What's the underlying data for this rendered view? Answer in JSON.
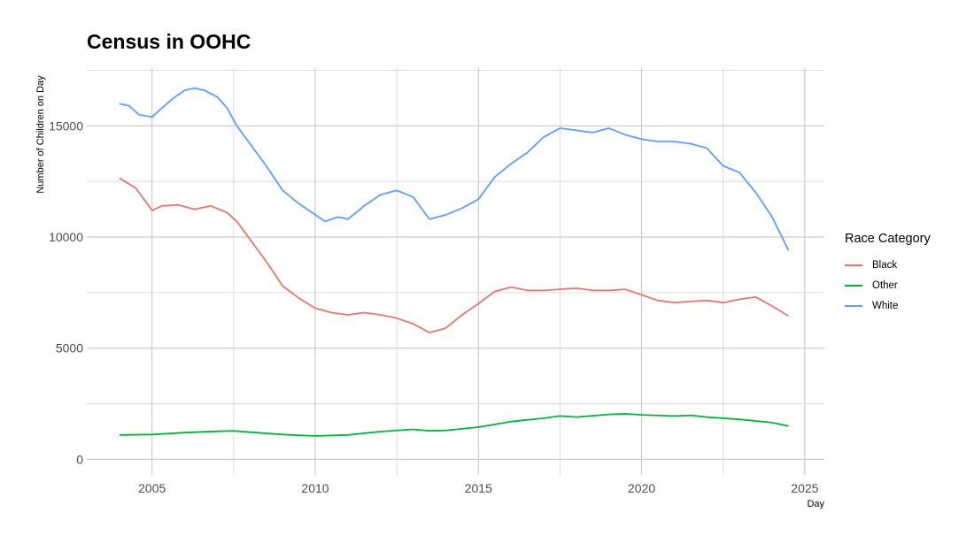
{
  "chart_data": {
    "type": "line",
    "title": "Census in OOHC",
    "xlabel": "Day",
    "ylabel": "Number of Children on Day",
    "xlim": [
      2003.0,
      2025.6
    ],
    "ylim": [
      -700,
      17600
    ],
    "x_ticks": [
      2005,
      2010,
      2015,
      2020,
      2025
    ],
    "y_ticks": [
      0,
      5000,
      10000,
      15000
    ],
    "grid": true,
    "legend": {
      "title": "Race Category",
      "placement": "right"
    },
    "series": [
      {
        "name": "Black",
        "color": "#E8766E",
        "x": [
          2004.0,
          2004.5,
          2005.0,
          2005.3,
          2005.8,
          2006.3,
          2006.8,
          2007.3,
          2007.6,
          2008.0,
          2008.5,
          2009.0,
          2009.5,
          2010.0,
          2010.5,
          2011.0,
          2011.5,
          2012.0,
          2012.5,
          2013.0,
          2013.5,
          2014.0,
          2014.5,
          2015.0,
          2015.5,
          2016.0,
          2016.5,
          2017.0,
          2017.5,
          2018.0,
          2018.5,
          2019.0,
          2019.5,
          2020.0,
          2020.5,
          2021.0,
          2021.5,
          2022.0,
          2022.5,
          2023.0,
          2023.5,
          2024.0,
          2024.5
        ],
        "y": [
          12650,
          12200,
          11200,
          11400,
          11450,
          11250,
          11400,
          11100,
          10700,
          9900,
          8900,
          7800,
          7250,
          6800,
          6600,
          6500,
          6600,
          6500,
          6350,
          6100,
          5700,
          5900,
          6500,
          7000,
          7550,
          7750,
          7600,
          7600,
          7650,
          7700,
          7600,
          7600,
          7650,
          7400,
          7150,
          7050,
          7100,
          7150,
          7050,
          7200,
          7300,
          6900,
          6450
        ]
      },
      {
        "name": "Other",
        "color": "#00B33C",
        "x": [
          2004.0,
          2005.0,
          2006.0,
          2007.0,
          2007.5,
          2008.0,
          2009.0,
          2010.0,
          2011.0,
          2012.0,
          2013.0,
          2013.5,
          2014.0,
          2015.0,
          2016.0,
          2017.0,
          2017.5,
          2018.0,
          2019.0,
          2019.5,
          2020.0,
          2021.0,
          2021.5,
          2022.0,
          2023.0,
          2024.0,
          2024.5
        ],
        "y": [
          1100,
          1120,
          1200,
          1260,
          1280,
          1220,
          1120,
          1050,
          1100,
          1250,
          1350,
          1280,
          1300,
          1450,
          1700,
          1850,
          1950,
          1900,
          2020,
          2050,
          2000,
          1950,
          1980,
          1900,
          1800,
          1650,
          1500
        ]
      },
      {
        "name": "White",
        "color": "#619CFF",
        "x": [
          2004.0,
          2004.3,
          2004.6,
          2005.0,
          2005.3,
          2005.7,
          2006.0,
          2006.3,
          2006.6,
          2007.0,
          2007.3,
          2007.6,
          2008.0,
          2008.5,
          2009.0,
          2009.5,
          2010.0,
          2010.3,
          2010.7,
          2011.0,
          2011.5,
          2012.0,
          2012.5,
          2013.0,
          2013.5,
          2014.0,
          2014.5,
          2015.0,
          2015.5,
          2016.0,
          2016.5,
          2017.0,
          2017.5,
          2018.0,
          2018.5,
          2019.0,
          2019.5,
          2020.0,
          2020.5,
          2021.0,
          2021.5,
          2022.0,
          2022.5,
          2023.0,
          2023.5,
          2024.0,
          2024.5
        ],
        "y": [
          16000,
          15900,
          15500,
          15400,
          15800,
          16300,
          16600,
          16700,
          16600,
          16300,
          15800,
          15000,
          14200,
          13200,
          12100,
          11500,
          11000,
          10700,
          10900,
          10800,
          11400,
          11900,
          12100,
          11800,
          10800,
          11000,
          11300,
          11700,
          12700,
          13300,
          13800,
          14500,
          14900,
          14800,
          14700,
          14900,
          14600,
          14400,
          14300,
          14300,
          14200,
          14000,
          13200,
          12900,
          12000,
          10900,
          9400
        ]
      }
    ]
  }
}
